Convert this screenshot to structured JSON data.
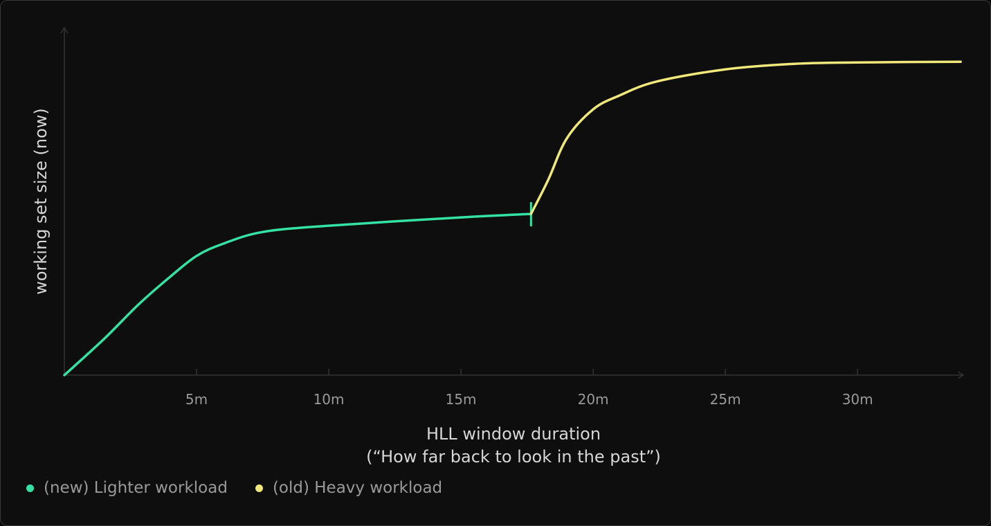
{
  "chart_data": {
    "type": "line",
    "title": "",
    "xlabel": "HLL window duration",
    "xlabel_sub": "(“How far back to look in the past”)",
    "ylabel": "working set size (now)",
    "x_ticks": [
      5,
      10,
      15,
      20,
      25,
      30
    ],
    "x_tick_labels": [
      "5m",
      "10m",
      "15m",
      "20m",
      "25m",
      "30m"
    ],
    "xlim": [
      0,
      34
    ],
    "ylim": [
      0,
      1
    ],
    "y_ticks": [],
    "grid": false,
    "legend_position": "bottom-left",
    "series": [
      {
        "name": "(new) Lighter workload",
        "color": "#34e3a4",
        "x": [
          0,
          1.5,
          2.8,
          4,
          5,
          6,
          7.5,
          10,
          15,
          17.65
        ],
        "y": [
          0,
          0.104,
          0.203,
          0.283,
          0.343,
          0.378,
          0.412,
          0.43,
          0.454,
          0.464
        ],
        "end_marker": "vertical-tick"
      },
      {
        "name": "(old) Heavy workload",
        "color": "#f0e87a",
        "x": [
          17.65,
          18.3,
          19,
          20,
          21,
          22.4,
          25,
          27.6,
          30,
          33.9
        ],
        "y": [
          0.464,
          0.562,
          0.681,
          0.765,
          0.805,
          0.845,
          0.88,
          0.896,
          0.9,
          0.902
        ]
      }
    ]
  }
}
